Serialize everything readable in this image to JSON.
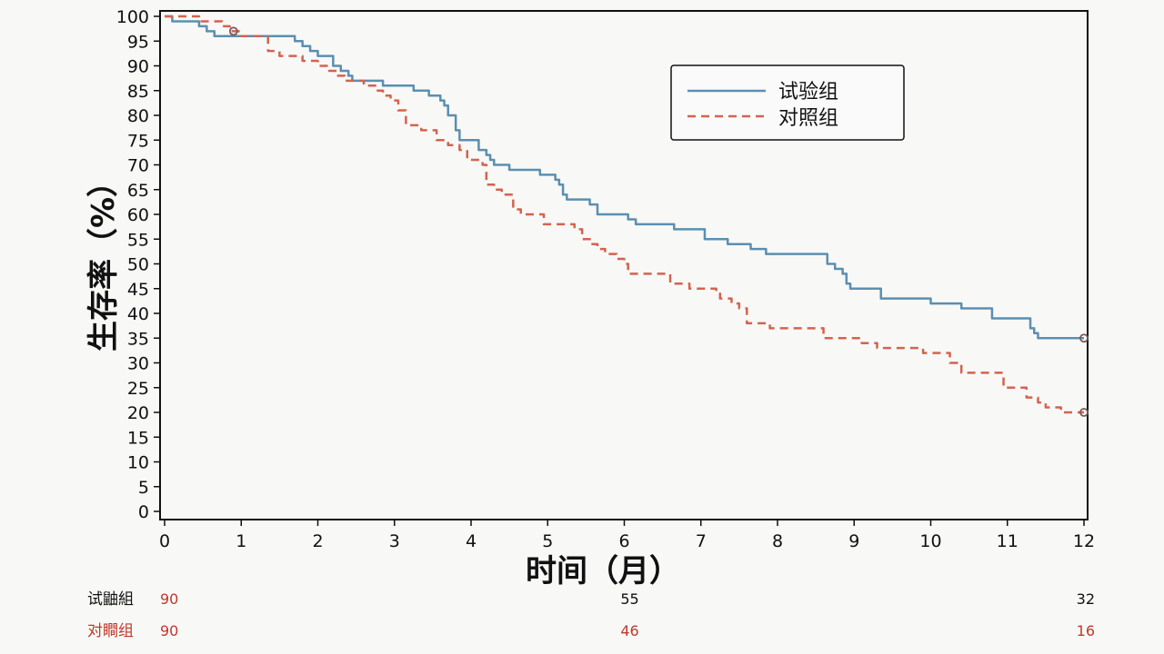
{
  "chart_data": {
    "type": "line",
    "subtype": "kaplan-meier",
    "title": "",
    "xlabel": "时间（月）",
    "ylabel": "生存率（%）",
    "xlim": [
      0,
      12
    ],
    "ylim": [
      0,
      100
    ],
    "x_ticks": [
      "0",
      "1",
      "2",
      "3",
      "4",
      "5",
      "6",
      "7",
      "8",
      "9",
      "10",
      "11",
      "12"
    ],
    "y_ticks": [
      "0",
      "5",
      "10",
      "15",
      "20",
      "25",
      "30",
      "35",
      "40",
      "45",
      "50",
      "55",
      "60",
      "65",
      "70",
      "75",
      "80",
      "85",
      "90",
      "95",
      "100"
    ],
    "grid": false,
    "legend_position": "top-right",
    "series": [
      {
        "name": "试验组",
        "color": "#5b8fb0",
        "line_style": "solid",
        "points": [
          [
            0,
            100
          ],
          [
            0.1,
            100
          ],
          [
            0.1,
            99
          ],
          [
            0.35,
            99
          ],
          [
            0.45,
            98
          ],
          [
            0.55,
            97
          ],
          [
            0.65,
            96
          ],
          [
            1.65,
            96
          ],
          [
            1.7,
            95
          ],
          [
            1.8,
            94
          ],
          [
            1.9,
            93
          ],
          [
            2.0,
            92
          ],
          [
            2.1,
            92
          ],
          [
            2.2,
            90
          ],
          [
            2.3,
            89
          ],
          [
            2.4,
            88
          ],
          [
            2.45,
            87
          ],
          [
            2.8,
            87
          ],
          [
            2.85,
            86
          ],
          [
            3.2,
            86
          ],
          [
            3.25,
            85
          ],
          [
            3.4,
            85
          ],
          [
            3.45,
            84
          ],
          [
            3.6,
            83
          ],
          [
            3.65,
            82
          ],
          [
            3.7,
            80
          ],
          [
            3.8,
            77
          ],
          [
            3.85,
            75
          ],
          [
            4.05,
            75
          ],
          [
            4.1,
            73
          ],
          [
            4.2,
            72
          ],
          [
            4.25,
            71
          ],
          [
            4.3,
            70
          ],
          [
            4.5,
            69
          ],
          [
            4.85,
            69
          ],
          [
            4.9,
            68
          ],
          [
            5.05,
            68
          ],
          [
            5.1,
            67
          ],
          [
            5.15,
            66
          ],
          [
            5.2,
            64
          ],
          [
            5.25,
            63
          ],
          [
            5.5,
            63
          ],
          [
            5.55,
            62
          ],
          [
            5.65,
            60
          ],
          [
            6.0,
            60
          ],
          [
            6.05,
            59
          ],
          [
            6.15,
            58
          ],
          [
            6.6,
            58
          ],
          [
            6.65,
            57
          ],
          [
            7.0,
            57
          ],
          [
            7.05,
            55
          ],
          [
            7.3,
            55
          ],
          [
            7.35,
            54
          ],
          [
            7.6,
            54
          ],
          [
            7.65,
            53
          ],
          [
            7.8,
            53
          ],
          [
            7.85,
            52
          ],
          [
            8.6,
            52
          ],
          [
            8.65,
            50
          ],
          [
            8.75,
            49
          ],
          [
            8.85,
            48
          ],
          [
            8.9,
            46
          ],
          [
            8.95,
            45
          ],
          [
            9.3,
            45
          ],
          [
            9.35,
            43
          ],
          [
            9.95,
            43
          ],
          [
            10.0,
            42
          ],
          [
            10.35,
            42
          ],
          [
            10.4,
            41
          ],
          [
            10.75,
            41
          ],
          [
            10.8,
            39
          ],
          [
            11.25,
            39
          ],
          [
            11.3,
            37
          ],
          [
            11.35,
            36
          ],
          [
            11.4,
            35
          ],
          [
            12,
            35
          ]
        ],
        "censor_marks": [
          [
            12,
            35
          ]
        ],
        "at_risk_color": "#111111"
      },
      {
        "name": "对照组",
        "color": "#d4634e",
        "line_style": "dashed",
        "points": [
          [
            0,
            100
          ],
          [
            0.4,
            100
          ],
          [
            0.45,
            99
          ],
          [
            0.75,
            98
          ],
          [
            0.85,
            97
          ],
          [
            1.0,
            96
          ],
          [
            1.3,
            96
          ],
          [
            1.35,
            93
          ],
          [
            1.5,
            92
          ],
          [
            1.8,
            91
          ],
          [
            2.0,
            90
          ],
          [
            2.15,
            89
          ],
          [
            2.25,
            88
          ],
          [
            2.35,
            87
          ],
          [
            2.6,
            86
          ],
          [
            2.75,
            85
          ],
          [
            2.85,
            84
          ],
          [
            2.95,
            83
          ],
          [
            3.05,
            81
          ],
          [
            3.15,
            78
          ],
          [
            3.35,
            77
          ],
          [
            3.55,
            75
          ],
          [
            3.7,
            74
          ],
          [
            3.85,
            73
          ],
          [
            3.95,
            71
          ],
          [
            4.15,
            70
          ],
          [
            4.2,
            66
          ],
          [
            4.3,
            65
          ],
          [
            4.4,
            64
          ],
          [
            4.55,
            61
          ],
          [
            4.65,
            60
          ],
          [
            4.85,
            60
          ],
          [
            4.95,
            58
          ],
          [
            5.25,
            58
          ],
          [
            5.35,
            57
          ],
          [
            5.45,
            55
          ],
          [
            5.55,
            54
          ],
          [
            5.65,
            53
          ],
          [
            5.75,
            52
          ],
          [
            5.9,
            51
          ],
          [
            6.0,
            50
          ],
          [
            6.05,
            48
          ],
          [
            6.5,
            48
          ],
          [
            6.6,
            46
          ],
          [
            6.85,
            45
          ],
          [
            7.2,
            44
          ],
          [
            7.25,
            43
          ],
          [
            7.4,
            42
          ],
          [
            7.5,
            41
          ],
          [
            7.6,
            38
          ],
          [
            7.85,
            38
          ],
          [
            7.9,
            37
          ],
          [
            8.5,
            37
          ],
          [
            8.6,
            35
          ],
          [
            9.0,
            35
          ],
          [
            9.1,
            34
          ],
          [
            9.3,
            33
          ],
          [
            9.85,
            33
          ],
          [
            9.9,
            32
          ],
          [
            10.15,
            32
          ],
          [
            10.25,
            30
          ],
          [
            10.4,
            28
          ],
          [
            10.85,
            28
          ],
          [
            10.95,
            25
          ],
          [
            11.15,
            25
          ],
          [
            11.25,
            23
          ],
          [
            11.4,
            22
          ],
          [
            11.5,
            21
          ],
          [
            11.7,
            20
          ],
          [
            12,
            20
          ]
        ],
        "censor_marks": [
          [
            0.9,
            97
          ],
          [
            12,
            20
          ]
        ],
        "at_risk_color": "#c0392b"
      }
    ],
    "at_risk": {
      "times": [
        0,
        6,
        12
      ],
      "rows": [
        {
          "group": "试鼬組",
          "counts": [
            "90",
            "55",
            "32"
          ],
          "first_color": "#c0392b",
          "color": "#111111"
        },
        {
          "group": "对瞷组",
          "counts": [
            "90",
            "46",
            "16"
          ],
          "first_color": "#c0392b",
          "color": "#c0392b"
        }
      ]
    }
  }
}
